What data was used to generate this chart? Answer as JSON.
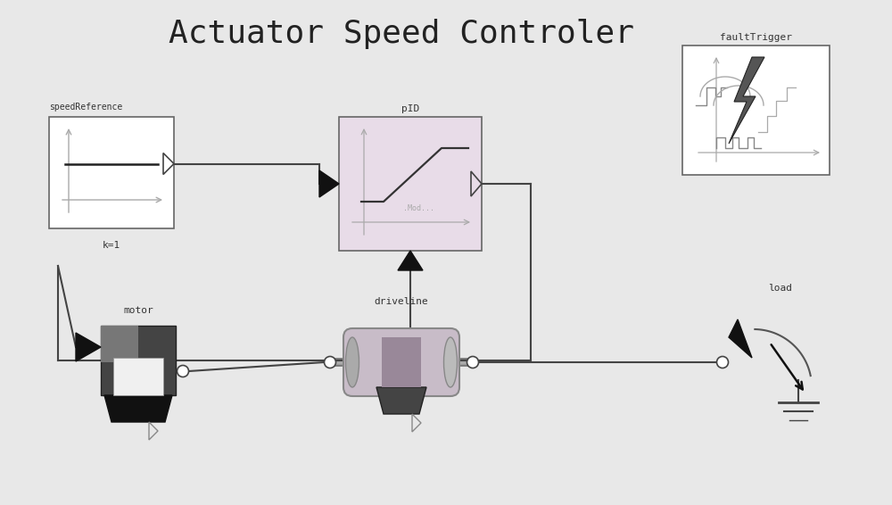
{
  "title": "Actuator Speed Controler",
  "title_fontsize": 26,
  "bg_color": "#e8e8e8",
  "box_color": "#ffffff",
  "box_edge": "#666666",
  "line_color": "#444444",
  "arrow_color": "#111111",
  "pid_inner_color": "#e8dce8",
  "sr_label": "speedReference",
  "sr_k": "k=1",
  "pid_label": "pID",
  "pid_mod": ".Mod...",
  "motor_label": "motor",
  "driveline_label": "driveline",
  "fault_label": "faultTrigger",
  "load_label": "load",
  "gray_line": "#aaaaaa",
  "dark_gray": "#555555",
  "mid_gray": "#888888"
}
